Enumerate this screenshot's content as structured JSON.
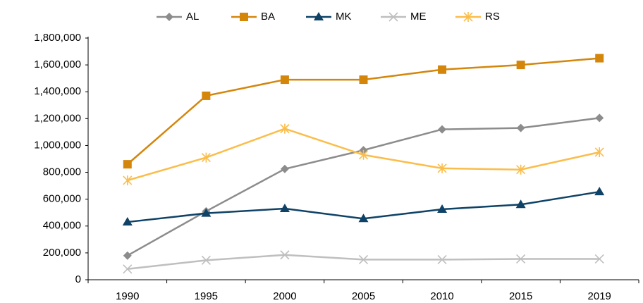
{
  "chart_data": {
    "type": "line",
    "categories": [
      "1990",
      "1995",
      "2000",
      "2005",
      "2010",
      "2015",
      "2019"
    ],
    "series": [
      {
        "name": "AL",
        "color": "#8c8c8c",
        "values": [
          180000,
          510000,
          825000,
          965000,
          1120000,
          1130000,
          1205000
        ]
      },
      {
        "name": "BA",
        "color": "#d4860b",
        "values": [
          860000,
          1370000,
          1490000,
          1490000,
          1565000,
          1600000,
          1650000
        ]
      },
      {
        "name": "MK",
        "color": "#0e4266",
        "values": [
          430000,
          495000,
          530000,
          455000,
          525000,
          560000,
          655000
        ]
      },
      {
        "name": "ME",
        "color": "#bfbfbf",
        "values": [
          80000,
          145000,
          185000,
          150000,
          150000,
          155000,
          155000
        ]
      },
      {
        "name": "RS",
        "color": "#fbbd4a",
        "values": [
          740000,
          910000,
          1125000,
          930000,
          830000,
          820000,
          950000
        ]
      }
    ],
    "ylim": [
      0,
      1800000
    ],
    "yticks": [
      0,
      {
        "value": 200000,
        "label": "200,000"
      },
      {
        "value": 400000,
        "label": "400,000"
      },
      {
        "value": 600000,
        "label": "600,000"
      },
      {
        "value": 800000,
        "label": "800,000"
      },
      {
        "value": 1000000,
        "label": "1,000,000"
      },
      {
        "value": 1200000,
        "label": "1,200,000"
      },
      {
        "value": 1400000,
        "label": "1,400,000"
      },
      {
        "value": 1600000,
        "label": "1,600,000"
      },
      {
        "value": 1800000,
        "label": "1,800,000"
      }
    ],
    "legend": "top",
    "grid": false
  }
}
